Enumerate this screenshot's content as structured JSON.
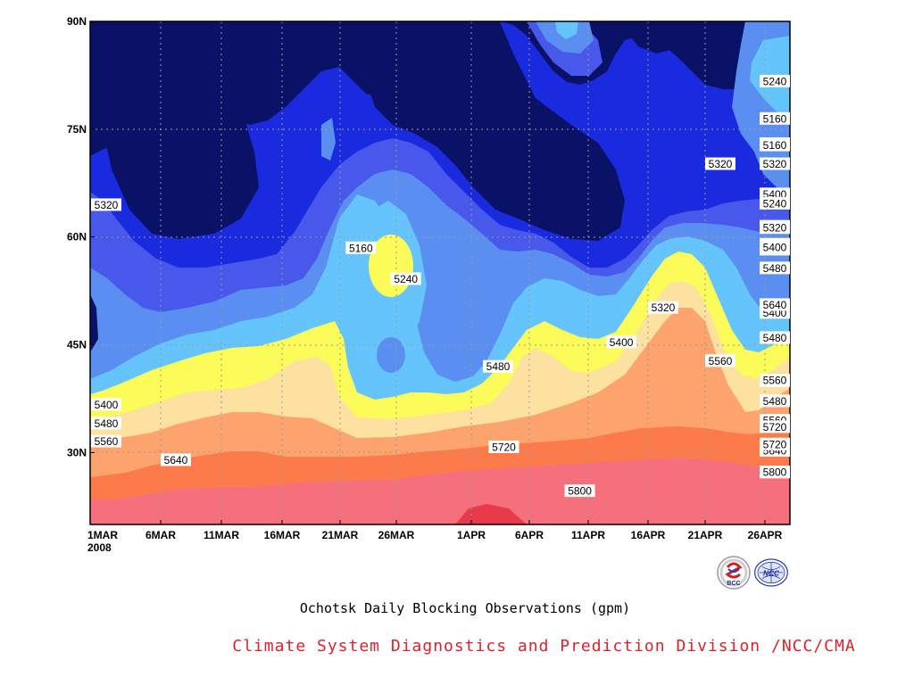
{
  "chart_data": {
    "type": "heatmap",
    "subtitle": "Ochotsk Daily Blocking Observations (gpm)",
    "credit": "Climate System Diagnostics and Prediction Division /NCC/CMA",
    "logos": [
      "BCC",
      "NCC"
    ],
    "x_tick_labels": [
      "1MAR",
      "6MAR",
      "11MAR",
      "16MAR",
      "21MAR",
      "26MAR",
      "1APR",
      "6APR",
      "11APR",
      "16APR",
      "21APR",
      "26APR"
    ],
    "x_year_label": "2008",
    "y_tick_labels": [
      "30N",
      "45N",
      "60N",
      "75N",
      "90N"
    ],
    "y_values": [
      30,
      45,
      60,
      75,
      90
    ],
    "ylim": [
      20,
      90
    ],
    "x_range": [
      "1MAR",
      "30APR"
    ],
    "contour_levels": [
      5160,
      5240,
      5320,
      5400,
      5480,
      5560,
      5640,
      5720,
      5800
    ],
    "level_colors": [
      "#0a1268",
      "#1a2bdf",
      "#4858ea",
      "#5a8ef0",
      "#64c4fb",
      "#fbfb5a",
      "#fde1a0",
      "#fda46e",
      "#fd7a4a",
      "#f5707c",
      "#e83a4a"
    ],
    "contour_labels": [
      {
        "value": 5160,
        "day": 15.0,
        "lat": 76.5
      },
      {
        "value": 5240,
        "day": 15.0,
        "lat": 73.0
      },
      {
        "value": 5320,
        "day": 10.0,
        "lat": 70.2
      },
      {
        "value": 5320,
        "day": 15.0,
        "lat": 70.2
      },
      {
        "value": 5400,
        "day": 15.0,
        "lat": 66.0
      },
      {
        "value": 5480,
        "day": 15.0,
        "lat": 61.5
      },
      {
        "value": 5320,
        "day": 0.0,
        "lat": 64.5
      },
      {
        "value": 5160,
        "day": 4.1,
        "lat": 58.5
      },
      {
        "value": 5240,
        "day": 4.9,
        "lat": 54.2
      },
      {
        "value": 5320,
        "day": 9.0,
        "lat": 50.2
      },
      {
        "value": 5400,
        "day": 8.3,
        "lat": 45.4
      },
      {
        "value": 5480,
        "day": 6.2,
        "lat": 42.0
      },
      {
        "value": 5560,
        "day": 10.0,
        "lat": 42.8
      },
      {
        "value": 5400,
        "day": 0.0,
        "lat": 36.7
      },
      {
        "value": 5480,
        "day": 0.0,
        "lat": 34.1
      },
      {
        "value": 5560,
        "day": 0.0,
        "lat": 31.6
      },
      {
        "value": 5640,
        "day": 1.0,
        "lat": 29.0
      },
      {
        "value": 5720,
        "day": 6.3,
        "lat": 30.8
      },
      {
        "value": 5800,
        "day": 7.6,
        "lat": 24.7
      },
      {
        "value": 5400,
        "day": 13.6,
        "lat": 40.0
      },
      {
        "value": 5480,
        "day": 15.4,
        "lat": 37.2
      },
      {
        "value": 5640,
        "day": 13.7,
        "lat": 30.3
      },
      {
        "value": 5560,
        "day": 17.7,
        "lat": 34.5
      },
      {
        "value": 5800,
        "day": 18.7,
        "lat": 27.3
      },
      {
        "value": 5240,
        "day": 18.8,
        "lat": 59.0
      },
      {
        "value": 5240,
        "day": 21.4,
        "lat": 81.7
      },
      {
        "value": 5160,
        "day": 21.0,
        "lat": 72.8
      },
      {
        "value": 5400,
        "day": 20.8,
        "lat": 49.5
      },
      {
        "value": 5480,
        "day": 21.4,
        "lat": 46.0
      },
      {
        "value": 5720,
        "day": 20.5,
        "lat": 31.2
      },
      {
        "value": 5560,
        "day": 23.9,
        "lat": 40.1
      },
      {
        "value": 5160,
        "day": 23.9,
        "lat": 58.3
      },
      {
        "value": 5400,
        "day": 26.6,
        "lat": 58.6
      },
      {
        "value": 5480,
        "day": 27.2,
        "lat": 55.7
      },
      {
        "value": 5640,
        "day": 27.1,
        "lat": 50.6
      },
      {
        "value": 5240,
        "day": 27.2,
        "lat": 64.7
      },
      {
        "value": 5320,
        "day": 28.6,
        "lat": 61.3
      },
      {
        "value": 5720,
        "day": 28.8,
        "lat": 33.6
      },
      {
        "value": 5800,
        "day": 28.8,
        "lat": 27.3
      }
    ]
  }
}
